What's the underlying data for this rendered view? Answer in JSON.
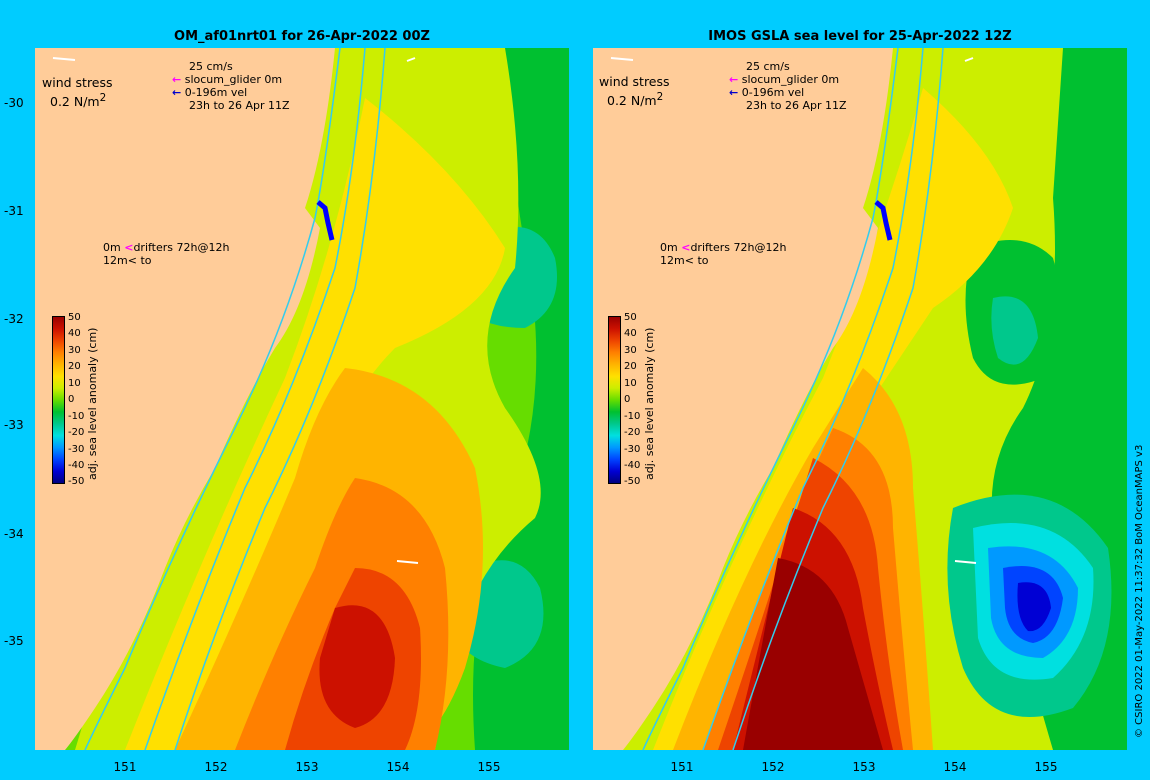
{
  "panels": [
    {
      "title": "OM_af01nrt01 for 26-Apr-2022 00Z",
      "wind_label": "wind stress",
      "wind_scale": "0.2 N/m",
      "wind_sup": "2",
      "legend_speed": "25 cm/s",
      "legend_glider": "slocum_glider 0m",
      "legend_vel": "0-196m vel",
      "legend_time": "23h to 26 Apr 11Z",
      "drifters_line1": "0m",
      "drifters_line1b": "drifters 72h@12h",
      "drifters_line2": "12m",
      "drifters_line2b": "to"
    },
    {
      "title": "IMOS GSLA sea level  for 25-Apr-2022 12Z",
      "wind_label": "wind stress",
      "wind_scale": "0.2 N/m",
      "wind_sup": "2",
      "legend_speed": "25 cm/s",
      "legend_glider": "slocum_glider 0m",
      "legend_vel": "0-196m vel",
      "legend_time": "23h to 26 Apr 11Z",
      "drifters_line1": "0m",
      "drifters_line1b": "drifters 72h@12h",
      "drifters_line2": "12m",
      "drifters_line2b": "to"
    }
  ],
  "y_axis": [
    "-30",
    "-31",
    "-32",
    "-33",
    "-34",
    "-35"
  ],
  "x_axis_left": [
    "151",
    "152",
    "153",
    "154",
    "155"
  ],
  "x_axis_right": [
    "151",
    "152",
    "153",
    "154",
    "155"
  ],
  "colorbar": {
    "title": "adj. sea level anomaly (cm)",
    "ticks": [
      "50",
      "40",
      "30",
      "20",
      "10",
      "0",
      "-10",
      "-20",
      "-30",
      "-40",
      "-50"
    ],
    "colors": [
      "#00007f",
      "#0000d4",
      "#0044ff",
      "#0099ff",
      "#00e0e0",
      "#00c88c",
      "#00c030",
      "#66dd00",
      "#ccee00",
      "#ffe000",
      "#ffb400",
      "#ff8000",
      "#ee4400",
      "#cc1100",
      "#990000"
    ]
  },
  "credit": "© CSIRO 2022  01-May-2022 11:37:32 BoM OceanMAPS v3"
}
